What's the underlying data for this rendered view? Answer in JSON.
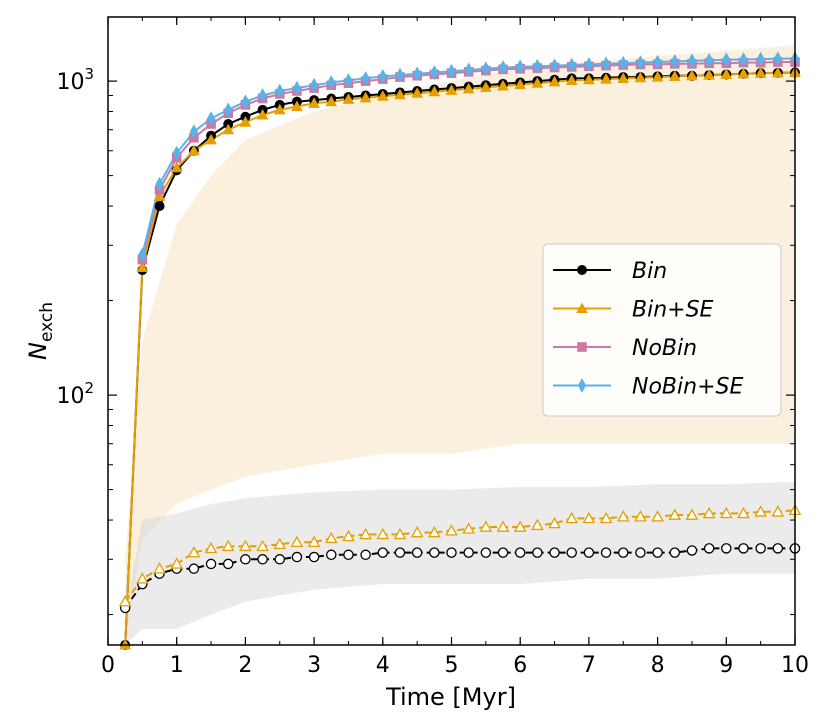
{
  "chart_data": {
    "type": "line",
    "xlabel": "Time [Myr]",
    "ylabel_main": "N",
    "ylabel_sub": "exch",
    "xlim": [
      0,
      10
    ],
    "ylim": [
      16,
      1600
    ],
    "yscale": "log",
    "x_ticks": [
      0,
      1,
      2,
      3,
      4,
      5,
      6,
      7,
      8,
      9,
      10
    ],
    "y_ticks": [
      {
        "value": 100,
        "base": "10",
        "exp": "2"
      },
      {
        "value": 1000,
        "base": "10",
        "exp": "3"
      }
    ],
    "legend_position": "center-right",
    "series": [
      {
        "name": "Bin",
        "color": "#000000",
        "marker": "circle",
        "linestyle": "solid",
        "filled": true,
        "x": [
          0.25,
          0.5,
          0.75,
          1.0,
          1.25,
          1.5,
          1.75,
          2.0,
          2.25,
          2.5,
          2.75,
          3.0,
          3.25,
          3.5,
          3.75,
          4.0,
          4.25,
          4.5,
          4.75,
          5.0,
          5.25,
          5.5,
          5.75,
          6.0,
          6.25,
          6.5,
          6.75,
          7.0,
          7.25,
          7.5,
          7.75,
          8.0,
          8.25,
          8.5,
          8.75,
          9.0,
          9.25,
          9.5,
          9.75,
          10.0
        ],
        "y": [
          16,
          250,
          400,
          520,
          600,
          670,
          730,
          770,
          810,
          840,
          860,
          870,
          880,
          890,
          900,
          910,
          920,
          930,
          940,
          950,
          960,
          970,
          980,
          990,
          1000,
          1010,
          1020,
          1020,
          1025,
          1030,
          1030,
          1035,
          1040,
          1040,
          1045,
          1050,
          1055,
          1060,
          1062,
          1065
        ]
      },
      {
        "name": "Bin+SE",
        "color": "#e69f00",
        "marker": "triangle",
        "linestyle": "solid",
        "filled": true,
        "x": [
          0.25,
          0.5,
          0.75,
          1.0,
          1.25,
          1.5,
          1.75,
          2.0,
          2.25,
          2.5,
          2.75,
          3.0,
          3.25,
          3.5,
          3.75,
          4.0,
          4.25,
          4.5,
          4.75,
          5.0,
          5.25,
          5.5,
          5.75,
          6.0,
          6.25,
          6.5,
          6.75,
          7.0,
          7.25,
          7.5,
          7.75,
          8.0,
          8.25,
          8.5,
          8.75,
          9.0,
          9.25,
          9.5,
          9.75,
          10.0
        ],
        "y": [
          16,
          255,
          430,
          530,
          600,
          650,
          700,
          740,
          780,
          810,
          830,
          850,
          860,
          875,
          885,
          895,
          905,
          915,
          925,
          935,
          945,
          955,
          965,
          975,
          985,
          995,
          1005,
          1010,
          1015,
          1020,
          1025,
          1030,
          1035,
          1040,
          1045,
          1050,
          1055,
          1060,
          1062,
          1065
        ]
      },
      {
        "name": "NoBin",
        "color": "#cc79a7",
        "marker": "square",
        "linestyle": "solid",
        "filled": true,
        "x": [
          0.5,
          0.75,
          1.0,
          1.25,
          1.5,
          1.75,
          2.0,
          2.25,
          2.5,
          2.75,
          3.0,
          3.25,
          3.5,
          3.75,
          4.0,
          4.25,
          4.5,
          4.75,
          5.0,
          5.25,
          5.5,
          5.75,
          6.0,
          6.25,
          6.5,
          6.75,
          7.0,
          7.25,
          7.5,
          7.75,
          8.0,
          8.25,
          8.5,
          8.75,
          9.0,
          9.25,
          9.5,
          9.75,
          10.0
        ],
        "y": [
          270,
          450,
          570,
          660,
          730,
          790,
          840,
          880,
          910,
          930,
          950,
          970,
          985,
          1000,
          1015,
          1030,
          1040,
          1050,
          1060,
          1070,
          1080,
          1090,
          1095,
          1100,
          1105,
          1110,
          1115,
          1120,
          1125,
          1130,
          1130,
          1135,
          1135,
          1140,
          1140,
          1145,
          1145,
          1150,
          1150
        ]
      },
      {
        "name": "NoBin+SE",
        "color": "#56b4e9",
        "marker": "diamond",
        "linestyle": "solid",
        "filled": true,
        "x": [
          0.5,
          0.75,
          1.0,
          1.25,
          1.5,
          1.75,
          2.0,
          2.25,
          2.5,
          2.75,
          3.0,
          3.25,
          3.5,
          3.75,
          4.0,
          4.25,
          4.5,
          4.75,
          5.0,
          5.25,
          5.5,
          5.75,
          6.0,
          6.25,
          6.5,
          6.75,
          7.0,
          7.25,
          7.5,
          7.75,
          8.0,
          8.25,
          8.5,
          8.75,
          9.0,
          9.25,
          9.5,
          9.75,
          10.0
        ],
        "y": [
          280,
          470,
          590,
          690,
          760,
          810,
          860,
          900,
          930,
          950,
          970,
          990,
          1005,
          1020,
          1035,
          1045,
          1055,
          1065,
          1075,
          1085,
          1095,
          1105,
          1110,
          1115,
          1120,
          1125,
          1130,
          1135,
          1140,
          1145,
          1150,
          1155,
          1160,
          1165,
          1170,
          1172,
          1175,
          1178,
          1180
        ]
      },
      {
        "color": "#000000",
        "marker": "circle",
        "linestyle": "dashed",
        "filled": false,
        "x": [
          0.25,
          0.5,
          0.75,
          1.0,
          1.25,
          1.5,
          1.75,
          2.0,
          2.25,
          2.5,
          2.75,
          3.0,
          3.25,
          3.5,
          3.75,
          4.0,
          4.25,
          4.5,
          4.75,
          5.0,
          5.25,
          5.5,
          5.75,
          6.0,
          6.25,
          6.5,
          6.75,
          7.0,
          7.25,
          7.5,
          7.75,
          8.0,
          8.25,
          8.5,
          8.75,
          9.0,
          9.25,
          9.5,
          9.75,
          10.0
        ],
        "y": [
          21,
          25,
          27,
          28,
          28,
          29,
          29,
          30,
          30,
          30,
          30.5,
          30.5,
          31,
          31,
          31,
          31.5,
          31.5,
          31.5,
          31.5,
          31.5,
          31.5,
          31.5,
          31.5,
          31.5,
          31.5,
          31.5,
          31.5,
          31.5,
          31.5,
          31.5,
          31.5,
          31.5,
          31.5,
          32,
          32.5,
          32.5,
          32.5,
          32.5,
          32.5,
          32.5
        ]
      },
      {
        "color": "#e69f00",
        "marker": "triangle",
        "linestyle": "dashed",
        "filled": false,
        "x": [
          0.25,
          0.5,
          0.75,
          1.0,
          1.25,
          1.5,
          1.75,
          2.0,
          2.25,
          2.5,
          2.75,
          3.0,
          3.25,
          3.5,
          3.75,
          4.0,
          4.25,
          4.5,
          4.75,
          5.0,
          5.25,
          5.5,
          5.75,
          6.0,
          6.25,
          6.5,
          6.75,
          7.0,
          7.25,
          7.5,
          7.75,
          8.0,
          8.25,
          8.5,
          8.75,
          9.0,
          9.25,
          9.5,
          9.75,
          10.0
        ],
        "y": [
          22,
          26,
          28,
          29,
          31.5,
          32.5,
          33,
          33,
          33,
          33.5,
          34,
          34,
          35,
          35.5,
          36,
          36,
          36,
          36.5,
          36.5,
          37,
          37.5,
          38,
          38,
          38,
          38.5,
          39,
          40.5,
          40.5,
          40.5,
          41,
          41,
          41,
          41.5,
          41.5,
          42,
          42,
          42,
          42.5,
          42.5,
          43
        ]
      }
    ],
    "bands": [
      {
        "color": "#f5deb3",
        "opacity": 0.45,
        "x": [
          0.25,
          0.5,
          1,
          1.5,
          2,
          3,
          4,
          5,
          6,
          7,
          8,
          9,
          10
        ],
        "upper": [
          30,
          150,
          350,
          500,
          650,
          800,
          900,
          1000,
          1100,
          1150,
          1200,
          1250,
          1300
        ],
        "lower": [
          16,
          35,
          45,
          50,
          55,
          60,
          65,
          65,
          70,
          70,
          70,
          70,
          70
        ]
      },
      {
        "color": "#d3d3d3",
        "opacity": 0.45,
        "x": [
          0.25,
          0.5,
          1,
          1.5,
          2,
          3,
          4,
          5,
          6,
          7,
          8,
          9,
          10
        ],
        "upper": [
          20,
          40,
          42,
          45,
          47,
          49,
          50,
          50,
          51,
          51,
          52,
          52,
          53
        ],
        "lower": [
          16,
          18,
          18,
          20,
          22,
          24,
          25,
          25,
          25,
          26,
          26,
          27,
          27
        ]
      }
    ]
  }
}
